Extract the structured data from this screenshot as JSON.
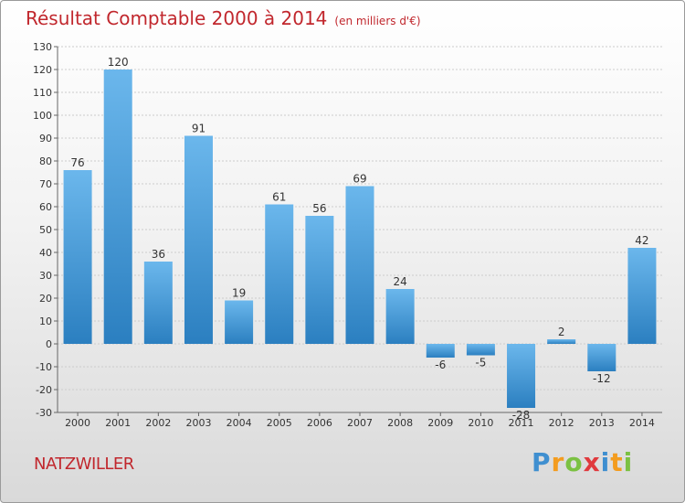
{
  "title": "Résultat Comptable 2000 à 2014",
  "subtitle": "(en milliers d'€)",
  "commune": "NATZWILLER",
  "logo": {
    "letters": [
      "P",
      "r",
      "o",
      "x",
      "i",
      "t",
      "i"
    ],
    "colors": [
      "#3f8fd0",
      "#f39c1f",
      "#7bc142",
      "#e03a3e",
      "#3f8fd0",
      "#f39c1f",
      "#7bc142"
    ]
  },
  "colors": {
    "bar_light": "#6bb7ec",
    "bar_dark": "#2b7fc0",
    "grid": "#cccccc",
    "title": "#c1272d"
  },
  "chart_data": {
    "type": "bar",
    "title": "Résultat Comptable 2000 à 2014",
    "subtitle": "(en milliers d'€)",
    "xlabel": "",
    "ylabel": "",
    "categories": [
      "2000",
      "2001",
      "2002",
      "2003",
      "2004",
      "2005",
      "2006",
      "2007",
      "2008",
      "2009",
      "2010",
      "2011",
      "2012",
      "2013",
      "2014"
    ],
    "values": [
      76,
      120,
      36,
      91,
      19,
      61,
      56,
      69,
      24,
      -6,
      -5,
      -28,
      2,
      -12,
      42
    ],
    "value_labels": [
      "76",
      "120",
      "36",
      "91",
      "19",
      "61",
      "56",
      "69",
      "24",
      "-6",
      "-5",
      "-28",
      "2",
      "-12",
      "42"
    ],
    "ylim": [
      -30,
      130
    ],
    "yticks": [
      130,
      120,
      110,
      100,
      90,
      80,
      70,
      60,
      50,
      40,
      30,
      20,
      10,
      0,
      -10,
      -20,
      -30
    ],
    "grid": true,
    "legend": "none"
  }
}
